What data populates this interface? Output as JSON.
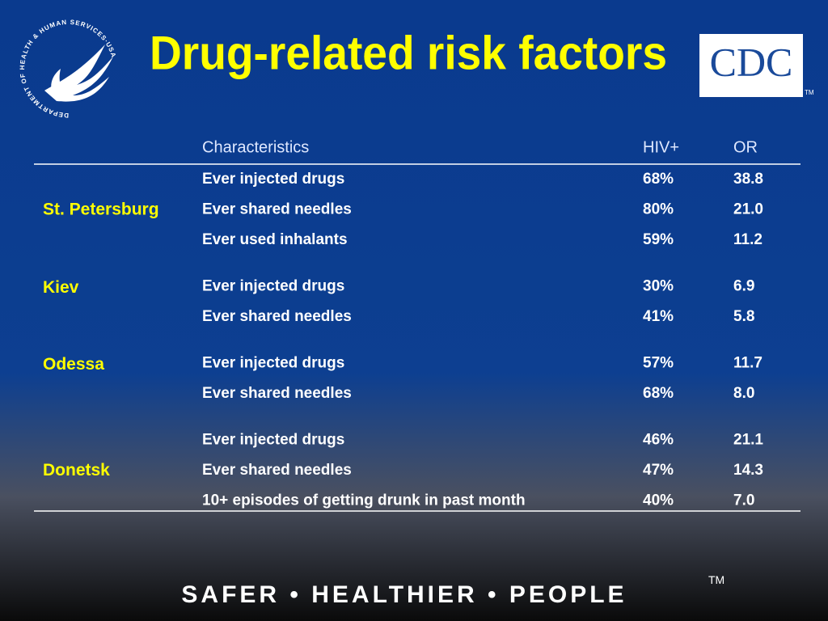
{
  "header": {
    "title": "Drug-related risk factors",
    "hhs_logo_text": "DEPARTMENT OF HEALTH & HUMAN SERVICES·USA",
    "cdc_logo": "CDC",
    "cdc_logo_mark": "TM"
  },
  "table": {
    "columns": [
      "Characteristics",
      "HIV+",
      "OR"
    ],
    "groups": [
      {
        "name": "St. Petersburg",
        "rows": [
          [
            "Ever injected drugs",
            "68%",
            "38.8"
          ],
          [
            "Ever shared needles",
            "80%",
            "21.0"
          ],
          [
            "Ever used inhalants",
            "59%",
            "11.2"
          ]
        ]
      },
      {
        "name": "Kiev",
        "rows": [
          [
            "Ever injected drugs",
            "30%",
            "6.9"
          ],
          [
            "Ever shared needles",
            "41%",
            "5.8"
          ]
        ]
      },
      {
        "name": "Odessa",
        "rows": [
          [
            "Ever injected drugs",
            "57%",
            "11.7"
          ],
          [
            "Ever shared needles",
            "68%",
            "8.0"
          ]
        ]
      },
      {
        "name": "Donetsk",
        "rows": [
          [
            "Ever injected drugs",
            "46%",
            "21.1"
          ],
          [
            "Ever shared needles",
            "47%",
            "14.3"
          ],
          [
            "10+ episodes of getting drunk in past month",
            "40%",
            "7.0"
          ]
        ]
      }
    ]
  },
  "footer": {
    "slogan": "SAFER • HEALTHIER • PEOPLE",
    "mark": "TM"
  }
}
